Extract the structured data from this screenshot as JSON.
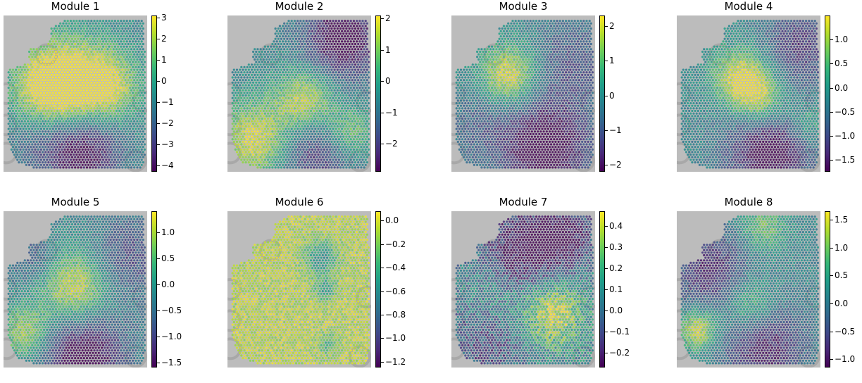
{
  "panels": [
    {
      "title": "Module 1",
      "ticks": [
        "3",
        "2",
        "1",
        "0",
        "−1",
        "−2",
        "−3",
        "−4"
      ],
      "range": [
        -4.3,
        3.1
      ],
      "hotspots": [
        [
          0.5,
          0.45,
          0.22,
          1.0
        ],
        [
          0.3,
          0.45,
          0.18,
          0.8
        ],
        [
          0.75,
          0.45,
          0.15,
          0.6
        ],
        [
          0.55,
          0.85,
          0.18,
          -1.0
        ],
        [
          0.25,
          0.8,
          0.15,
          -0.3
        ]
      ]
    },
    {
      "title": "Module 2",
      "ticks": [
        "2",
        "1",
        "0",
        "−1",
        "−2"
      ],
      "range": [
        -2.9,
        2.1
      ],
      "hotspots": [
        [
          0.55,
          0.55,
          0.15,
          1.0
        ],
        [
          0.2,
          0.8,
          0.18,
          1.0
        ],
        [
          0.8,
          0.15,
          0.18,
          -1.0
        ],
        [
          0.6,
          0.85,
          0.2,
          -0.7
        ],
        [
          0.85,
          0.75,
          0.12,
          0.7
        ]
      ]
    },
    {
      "title": "Module 3",
      "ticks": [
        "2",
        "1",
        "0",
        "−1",
        "−2"
      ],
      "range": [
        -2.2,
        2.3
      ],
      "hotspots": [
        [
          0.4,
          0.38,
          0.14,
          1.0
        ],
        [
          0.65,
          0.85,
          0.22,
          -1.0
        ],
        [
          0.85,
          0.3,
          0.2,
          -0.4
        ],
        [
          0.2,
          0.7,
          0.15,
          -0.3
        ]
      ]
    },
    {
      "title": "Module 4",
      "ticks": [
        "1.0",
        "0.5",
        "0.0",
        "−0.5",
        "−1.0",
        "−1.5"
      ],
      "range": [
        -1.75,
        1.5
      ],
      "hotspots": [
        [
          0.45,
          0.4,
          0.14,
          1.0
        ],
        [
          0.6,
          0.55,
          0.13,
          0.8
        ],
        [
          0.65,
          0.85,
          0.2,
          -1.0
        ],
        [
          0.85,
          0.2,
          0.18,
          -0.6
        ],
        [
          0.9,
          0.7,
          0.1,
          0.5
        ]
      ]
    },
    {
      "title": "Module 5",
      "ticks": [
        "1.0",
        "0.5",
        "0.0",
        "−0.5",
        "−1.0",
        "−1.5"
      ],
      "range": [
        -1.6,
        1.4
      ],
      "hotspots": [
        [
          0.5,
          0.5,
          0.18,
          1.0
        ],
        [
          0.15,
          0.78,
          0.12,
          0.8
        ],
        [
          0.55,
          0.9,
          0.2,
          -1.0
        ],
        [
          0.85,
          0.3,
          0.18,
          -0.5
        ],
        [
          0.2,
          0.3,
          0.12,
          -0.4
        ]
      ]
    },
    {
      "title": "Module 6",
      "ticks": [
        "0.0",
        "−0.2",
        "−0.4",
        "−0.6",
        "−0.8",
        "−1.0",
        "−1.2"
      ],
      "range": [
        -1.25,
        0.08
      ],
      "hotspots": [
        [
          0.65,
          0.3,
          0.08,
          -0.7
        ],
        [
          0.68,
          0.5,
          0.05,
          -0.6
        ],
        [
          0.7,
          0.85,
          0.05,
          -0.4
        ]
      ]
    },
    {
      "title": "Module 7",
      "ticks": [
        "0.4",
        "0.3",
        "0.2",
        "0.1",
        "0.0",
        "−0.1",
        "−0.2"
      ],
      "range": [
        -0.27,
        0.47
      ],
      "hotspots": [
        [
          0.7,
          0.65,
          0.15,
          1.0
        ],
        [
          0.5,
          0.25,
          0.2,
          -0.9
        ],
        [
          0.8,
          0.15,
          0.15,
          -0.7
        ],
        [
          0.25,
          0.85,
          0.2,
          -0.5
        ],
        [
          0.3,
          0.55,
          0.15,
          0.3
        ]
      ]
    },
    {
      "title": "Module 8",
      "ticks": [
        "1.5",
        "1.0",
        "0.5",
        "0.0",
        "−0.5",
        "−1.0"
      ],
      "range": [
        -1.15,
        1.65
      ],
      "hotspots": [
        [
          0.15,
          0.75,
          0.1,
          1.0
        ],
        [
          0.5,
          0.6,
          0.14,
          0.8
        ],
        [
          0.6,
          0.1,
          0.12,
          0.6
        ],
        [
          0.25,
          0.4,
          0.2,
          -0.7
        ],
        [
          0.6,
          0.85,
          0.2,
          -0.8
        ]
      ]
    }
  ],
  "colors": {
    "viridis": [
      "#440154",
      "#482878",
      "#3e4989",
      "#31688e",
      "#26828e",
      "#1f9e89",
      "#35b779",
      "#6ece58",
      "#b5de2b",
      "#fde725"
    ],
    "background_tissue": "#bcbcbc"
  }
}
